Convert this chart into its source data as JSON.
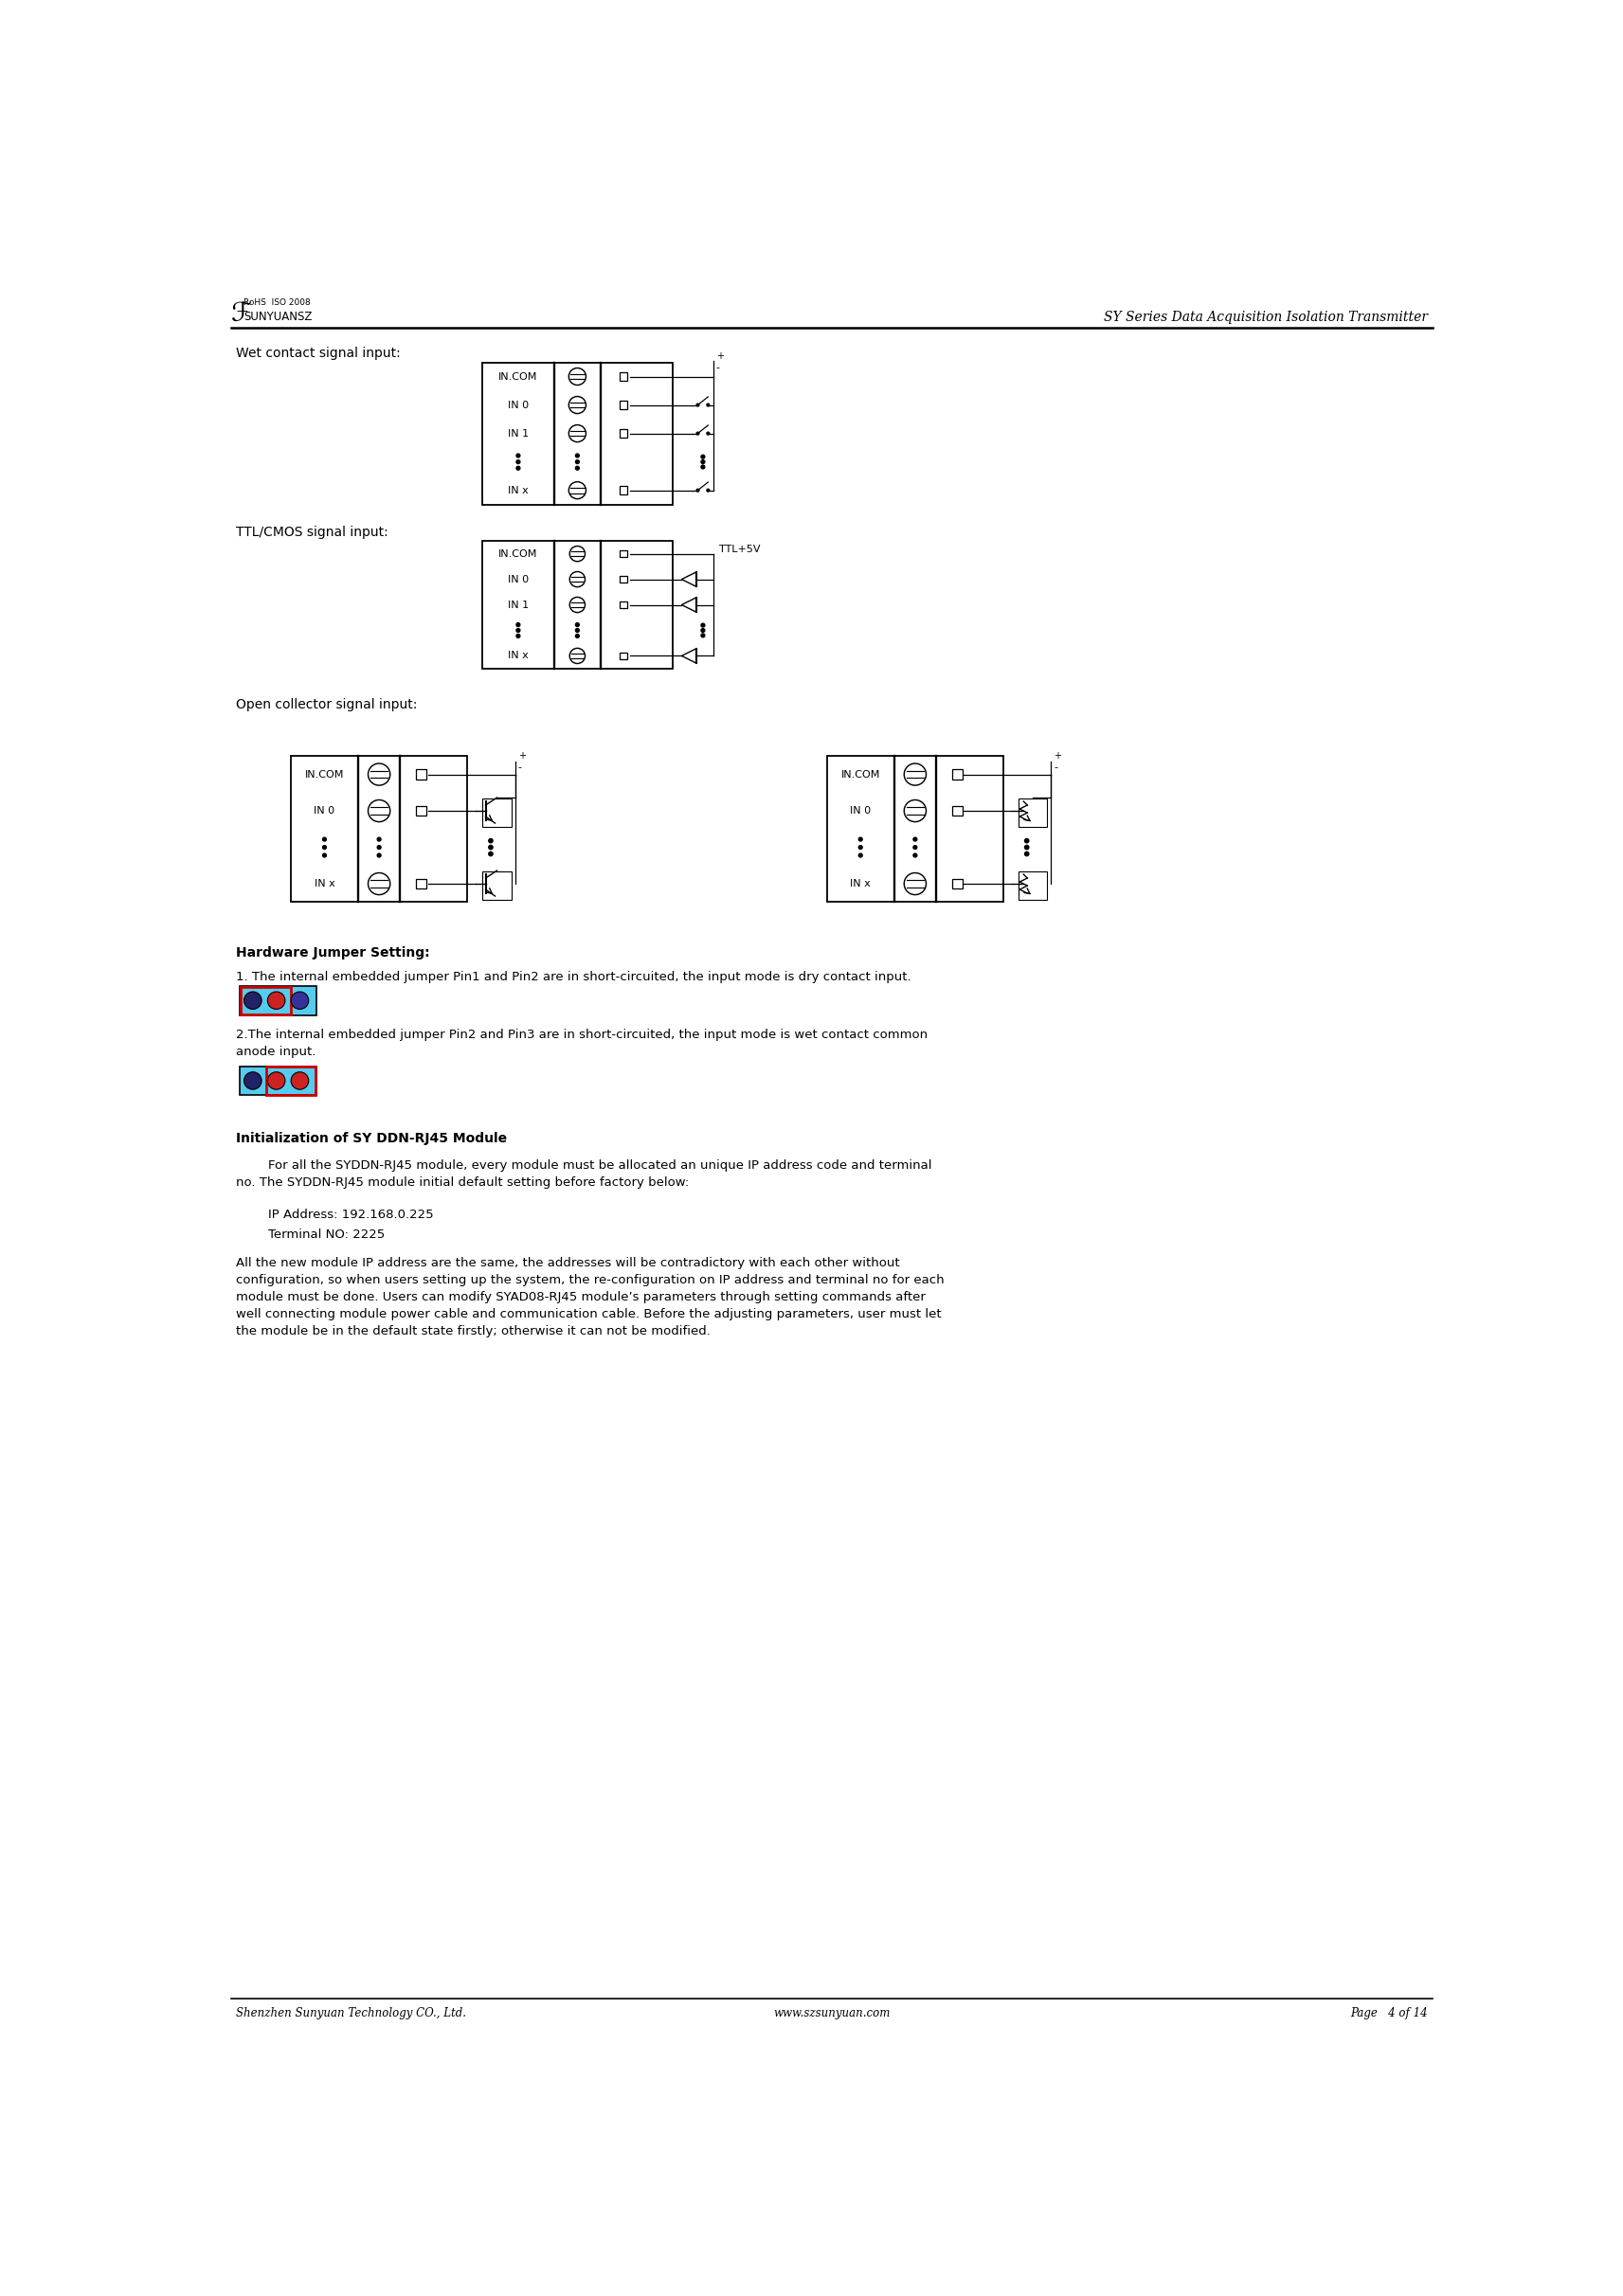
{
  "page_width": 17.13,
  "page_height": 24.24,
  "bg_color": "#ffffff",
  "header_logo_text": "SUNYUANSZ",
  "header_cert_text": "RoHS  ISO 2008",
  "header_title": "SY Series Data Acquisition Isolation Transmitter",
  "footer_left": "Shenzhen Sunyuan Technology CO., Ltd.",
  "footer_center": "www.szsunyuan.com",
  "footer_right": "Page   4 of 14",
  "section1_label": "Wet contact signal input:",
  "section2_label": "TTL/CMOS signal input:",
  "section3_label": "Open collector signal input:",
  "hw_jumper_title": "Hardware Jumper Setting:",
  "hw_jumper_text1": "1. The internal embedded jumper Pin1 and Pin2 are in short-circuited, the input mode is dry contact input.",
  "hw_jumper_text2": "2.The internal embedded jumper Pin2 and Pin3 are in short-circuited, the input mode is wet contact common\nanode input.",
  "init_title": "Initialization of SY DDN-RJ45 Module",
  "init_para1": "        For all the SYDDN-RJ45 module, every module must be allocated an unique IP address code and terminal\nno. The SYDDN-RJ45 module initial default setting before factory below:",
  "init_para2": "        IP Address: 192.168.0.225\n        Terminal NO: 2225",
  "init_para3": "All the new module IP address are the same, the addresses will be contradictory with each other without\nconfiguration, so when users setting up the system, the re-configuration on IP address and terminal no for each\nmodule must be done. Users can modify SYAD08-RJ45 module’s parameters through setting commands after\nwell connecting module power cable and communication cable. Before the adjusting parameters, user must let\nthe module be in the default state firstly; otherwise it can not be modified.",
  "ttl_label": "TTL+5V",
  "jumper1_colors": [
    "#222266",
    "#CC0000",
    "#CC3333"
  ],
  "jumper2_colors": [
    "#CC0000",
    "#CC3333"
  ],
  "jumper_bg": "#55CCEE",
  "jumper_red_outline": "#CC0000"
}
